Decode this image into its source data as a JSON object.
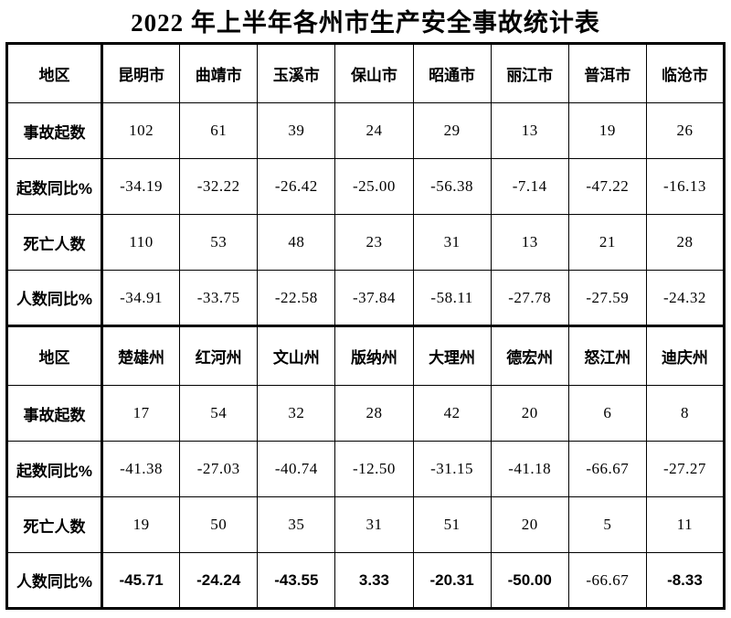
{
  "title": "2022 年上半年各州市生产安全事故统计表",
  "colors": {
    "background": "#ffffff",
    "border": "#000000",
    "text": "#000000"
  },
  "table": {
    "sections": [
      {
        "corner_label": "地区",
        "regions": [
          "昆明市",
          "曲靖市",
          "玉溪市",
          "保山市",
          "昭通市",
          "丽江市",
          "普洱市",
          "临沧市"
        ],
        "rows": [
          {
            "label": "事故起数",
            "values": [
              "102",
              "61",
              "39",
              "24",
              "29",
              "13",
              "19",
              "26"
            ]
          },
          {
            "label": "起数同比%",
            "values": [
              "-34.19",
              "-32.22",
              "-26.42",
              "-25.00",
              "-56.38",
              "-7.14",
              "-47.22",
              "-16.13"
            ]
          },
          {
            "label": "死亡人数",
            "values": [
              "110",
              "53",
              "48",
              "23",
              "31",
              "13",
              "21",
              "28"
            ]
          },
          {
            "label": "人数同比%",
            "values": [
              "-34.91",
              "-33.75",
              "-22.58",
              "-37.84",
              "-58.11",
              "-27.78",
              "-27.59",
              "-24.32"
            ]
          }
        ]
      },
      {
        "corner_label": "地区",
        "regions": [
          "楚雄州",
          "红河州",
          "文山州",
          "版纳州",
          "大理州",
          "德宏州",
          "怒江州",
          "迪庆州"
        ],
        "rows": [
          {
            "label": "事故起数",
            "values": [
              "17",
              "54",
              "32",
              "28",
              "42",
              "20",
              "6",
              "8"
            ]
          },
          {
            "label": "起数同比%",
            "values": [
              "-41.38",
              "-27.03",
              "-40.74",
              "-12.50",
              "-31.15",
              "-41.18",
              "-66.67",
              "-27.27"
            ]
          },
          {
            "label": "死亡人数",
            "values": [
              "19",
              "50",
              "35",
              "31",
              "51",
              "20",
              "5",
              "11"
            ]
          },
          {
            "label": "人数同比%",
            "values": [
              "-45.71",
              "-24.24",
              "-43.55",
              "3.33",
              "-20.31",
              "-50.00",
              "-66.67",
              "-8.33"
            ],
            "bold": true,
            "plain_indices": [
              6
            ]
          }
        ]
      }
    ]
  }
}
